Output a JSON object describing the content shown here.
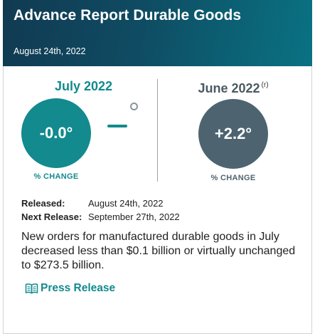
{
  "header": {
    "title": "Advance Report Durable Goods",
    "date": "August 24th, 2022"
  },
  "current": {
    "month": "July 2022",
    "value": "-0.0°",
    "caption": "% CHANGE",
    "color": "#128a8e"
  },
  "previous": {
    "month": "June 2022",
    "revised_mark": "(r)",
    "value": "+2.2°",
    "caption": "% CHANGE",
    "color": "#4d6470"
  },
  "details": {
    "released_label": "Released",
    "released_value": "August 24th, 2022",
    "next_label": "Next Release",
    "next_value": "September 27th, 2022"
  },
  "description": "New orders for manufactured durable goods in July decreased less than $0.1 billion or virtually unchanged to $273.5 billion.",
  "press_release": {
    "label": "Press Release",
    "icon": "book-icon"
  }
}
